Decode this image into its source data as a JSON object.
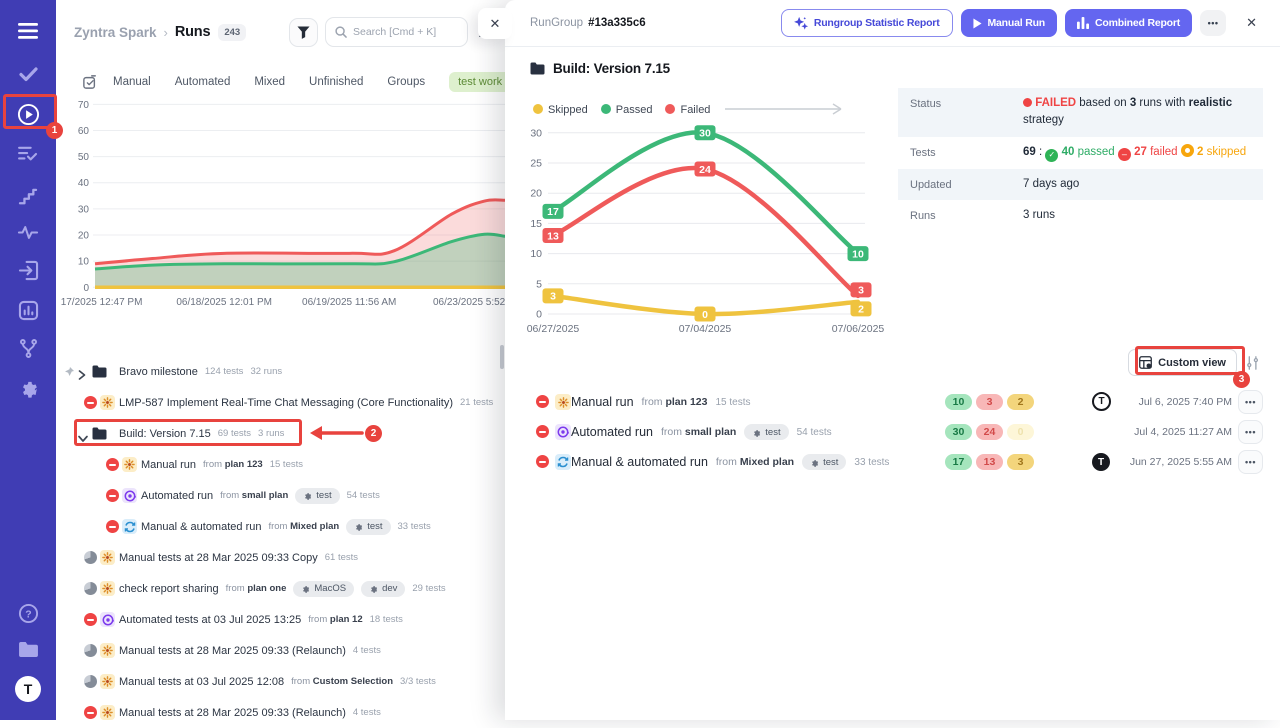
{
  "annotations": {
    "step1": "1",
    "step2": "2",
    "step3": "3"
  },
  "sidebar": {
    "avatar_label": "T"
  },
  "header": {
    "project": "Zyntra Spark",
    "separator": "›",
    "page": "Runs",
    "count": "243",
    "search_placeholder": "Search [Cmd + K]"
  },
  "tabs": [
    {
      "label": "Manual"
    },
    {
      "label": "Automated"
    },
    {
      "label": "Mixed"
    },
    {
      "label": "Unfinished"
    },
    {
      "label": "Groups"
    },
    {
      "label": "test work",
      "pill": true
    }
  ],
  "chart_data": [
    {
      "type": "area",
      "stacked": true,
      "grid": true,
      "ylim": [
        0,
        70
      ],
      "yticks": [
        0,
        10,
        20,
        30,
        40,
        50,
        60,
        70
      ],
      "x_ticks": [
        {
          "label": "17/2025 12:47 PM",
          "f": 0.016
        },
        {
          "label": "06/18/2025 12:01 PM",
          "f": 0.315
        },
        {
          "label": "06/19/2025 11:56 AM",
          "f": 0.62
        },
        {
          "label": "06/23/2025 5:52 P",
          "f": 0.924
        }
      ],
      "series": [
        {
          "name": "Skipped",
          "color": "#efc33f",
          "fill": "none",
          "points": [
            [
              0,
              0
            ],
            [
              1,
              0
            ]
          ]
        },
        {
          "name": "Failed stacked total",
          "color": "#ef5a5a",
          "fill": "rgba(239,90,90,0.22)",
          "points": [
            [
              0,
              9
            ],
            [
              0.14,
              11
            ],
            [
              0.315,
              13
            ],
            [
              0.62,
              13
            ],
            [
              0.73,
              14
            ],
            [
              0.87,
              28
            ],
            [
              0.95,
              33
            ],
            [
              1,
              33.3
            ]
          ]
        },
        {
          "name": "Passed",
          "color": "#3cb878",
          "fill": "rgba(60,184,120,0.30)",
          "points": [
            [
              0,
              7
            ],
            [
              0.14,
              8.5
            ],
            [
              0.315,
              9
            ],
            [
              0.62,
              9
            ],
            [
              0.73,
              9.8
            ],
            [
              0.87,
              17.5
            ],
            [
              0.95,
              20.3
            ],
            [
              1,
              19.5
            ]
          ]
        }
      ]
    },
    {
      "type": "line",
      "grid": true,
      "ylim": [
        0,
        30
      ],
      "yticks": [
        0,
        5,
        10,
        15,
        20,
        25,
        30
      ],
      "x_ticks": [
        {
          "label": "06/27/2025"
        },
        {
          "label": "07/04/2025"
        },
        {
          "label": "07/06/2025"
        }
      ],
      "legend": [
        {
          "label": "Skipped",
          "color": "#efc33f"
        },
        {
          "label": "Passed",
          "color": "#3cb878"
        },
        {
          "label": "Failed",
          "color": "#ef5a5a"
        }
      ],
      "series": [
        {
          "name": "Passed",
          "color": "#3cb878",
          "values": [
            17,
            30,
            10
          ],
          "label_pos": [
            "c",
            "c",
            "c"
          ]
        },
        {
          "name": "Failed",
          "color": "#ef5a5a",
          "values": [
            13,
            24,
            3
          ],
          "label_pos": [
            "c",
            "c",
            "up"
          ]
        },
        {
          "name": "Skipped",
          "color": "#efc33f",
          "values": [
            3,
            0,
            2
          ],
          "label_pos": [
            "c",
            "c",
            "down"
          ]
        }
      ]
    }
  ],
  "tree": [
    {
      "pin": true,
      "expander": "right",
      "icon": "folder",
      "title": "Bravo milestone",
      "meta": [
        "124 tests",
        "32 runs"
      ]
    },
    {
      "status": "failed",
      "icon": "manual",
      "title": "LMP-587 Implement Real-Time Chat Messaging (Core Functionality)",
      "meta": [
        "21 tests"
      ]
    },
    {
      "expander": "down",
      "icon": "folder",
      "title": "Build: Version 7.15",
      "meta": [
        "69 tests",
        "3 runs"
      ]
    },
    {
      "indent": 1,
      "status": "failed",
      "icon": "manual",
      "title": "Manual run",
      "from": "plan 123",
      "meta": [
        "15 tests"
      ]
    },
    {
      "indent": 1,
      "status": "failed",
      "icon": "automated",
      "title": "Automated run",
      "from": "small plan",
      "tags": [
        "test"
      ],
      "meta": [
        "54 tests"
      ]
    },
    {
      "indent": 1,
      "status": "failed",
      "icon": "mixed",
      "title": "Manual & automated run",
      "from": "Mixed plan",
      "tags": [
        "test"
      ],
      "meta": [
        "33 tests"
      ]
    },
    {
      "status": "progress",
      "icon": "manual",
      "title": "Manual tests at 28 Mar 2025 09:33 Copy",
      "meta": [
        "61 tests"
      ]
    },
    {
      "status": "progress",
      "icon": "manual",
      "title": "check report sharing",
      "from": "plan one",
      "tags": [
        "MacOS",
        "dev"
      ],
      "meta": [
        "29 tests"
      ]
    },
    {
      "status": "failed",
      "icon": "automated",
      "title": "Automated tests at 03 Jul 2025 13:25",
      "from": "plan 12",
      "meta": [
        "18 tests"
      ]
    },
    {
      "status": "progress",
      "icon": "manual",
      "title": "Manual tests at 28 Mar 2025 09:33 (Relaunch)",
      "meta": [
        "4 tests"
      ]
    },
    {
      "status": "progress",
      "icon": "manual",
      "title": "Manual tests at 03 Jul 2025 12:08",
      "from": "Custom Selection",
      "meta": [
        "3/3 tests"
      ]
    },
    {
      "status": "failed",
      "icon": "manual",
      "title": "Manual tests at 28 Mar 2025 09:33 (Relaunch)",
      "meta": [
        "4 tests"
      ]
    }
  ],
  "drawer": {
    "header_label": "RunGroup",
    "header_id": "#13a335c6",
    "buttons": [
      {
        "label": "Rungroup Statistic Report",
        "style": "outline",
        "icon": "sparkle"
      },
      {
        "label": "Manual Run",
        "style": "solid",
        "icon": "play"
      },
      {
        "label": "Combined Report",
        "style": "solid",
        "icon": "chart"
      }
    ],
    "menu_dots": "•••",
    "close": "✕",
    "title": "Build: Version 7.15",
    "info": [
      {
        "label": "Status",
        "parts": [
          {
            "i": "dot-red"
          },
          {
            "t": " "
          },
          {
            "t": "FAILED",
            "c": "red",
            "b": 1
          },
          {
            "t": " based on "
          },
          {
            "t": "3",
            "b": 1
          },
          {
            "t": " runs with "
          },
          {
            "t": "realistic",
            "b": 1
          },
          {
            "t": " strategy"
          }
        ]
      },
      {
        "label": "Tests",
        "parts": [
          {
            "t": "69",
            "b": 1
          },
          {
            "t": " :  "
          },
          {
            "i": "check-green"
          },
          {
            "t": " "
          },
          {
            "t": "40",
            "c": "green",
            "b": 1
          },
          {
            "t": " passed",
            "c": "green"
          },
          {
            "t": "    "
          },
          {
            "i": "minus-red"
          },
          {
            "t": " "
          },
          {
            "t": "27",
            "c": "red",
            "b": 1
          },
          {
            "t": " failed",
            "c": "red"
          },
          {
            "t": "    "
          },
          {
            "i": "dot-orange"
          },
          {
            "t": " "
          },
          {
            "t": "2",
            "c": "orange",
            "b": 1
          },
          {
            "t": " skipped",
            "c": "orange"
          }
        ]
      },
      {
        "label": "Updated",
        "parts": [
          {
            "t": "7 days ago"
          }
        ]
      },
      {
        "label": "Runs",
        "parts": [
          {
            "t": "3 runs"
          }
        ]
      }
    ],
    "custom_view": "Custom view",
    "runs": [
      {
        "status": "failed",
        "icon": "manual",
        "title": "Manual run",
        "from": "plan 123",
        "tags": [],
        "tests": "15 tests",
        "badges": [
          {
            "v": "10",
            "k": "green"
          },
          {
            "v": "3",
            "k": "red"
          },
          {
            "v": "2",
            "k": "yellow"
          }
        ],
        "avatar": "outline",
        "date": "Jul 6, 2025 7:40 PM"
      },
      {
        "status": "failed",
        "icon": "automated",
        "title": "Automated run",
        "from": "small plan",
        "tags": [
          "test"
        ],
        "tests": "54 tests",
        "badges": [
          {
            "v": "30",
            "k": "green"
          },
          {
            "v": "24",
            "k": "red"
          },
          {
            "v": "0",
            "k": "yellow-muted"
          }
        ],
        "avatar": "none",
        "date": "Jul 4, 2025 11:27 AM"
      },
      {
        "status": "failed",
        "icon": "mixed",
        "title": "Manual & automated run",
        "from": "Mixed plan",
        "tags": [
          "test"
        ],
        "tests": "33 tests",
        "badges": [
          {
            "v": "17",
            "k": "green"
          },
          {
            "v": "13",
            "k": "red"
          },
          {
            "v": "3",
            "k": "yellow"
          }
        ],
        "avatar": "dark",
        "date": "Jun 27, 2025 5:55 AM"
      }
    ]
  }
}
